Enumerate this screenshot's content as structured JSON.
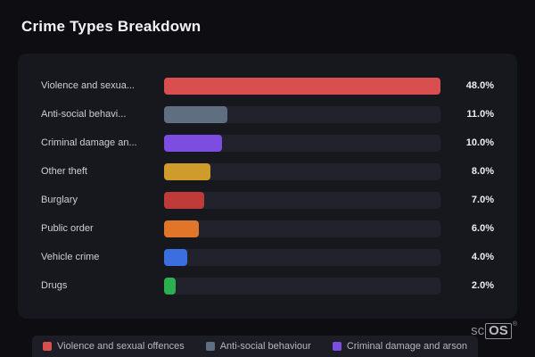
{
  "page": {
    "title": "Crime Types Breakdown"
  },
  "chart_data": {
    "type": "bar",
    "orientation": "horizontal",
    "title": "Crime Types Breakdown",
    "categories": [
      "Violence and sexua...",
      "Anti-social behavi...",
      "Criminal damage an...",
      "Other theft",
      "Burglary",
      "Public order",
      "Vehicle crime",
      "Drugs"
    ],
    "values": [
      48.0,
      11.0,
      10.0,
      8.0,
      7.0,
      6.0,
      4.0,
      2.0
    ],
    "value_labels": [
      "48.0%",
      "11.0%",
      "10.0%",
      "8.0%",
      "7.0%",
      "6.0%",
      "4.0%",
      "2.0%"
    ],
    "colors": [
      "#d94f4f",
      "#5f6f81",
      "#7d4ce0",
      "#cf9b2a",
      "#c13a3a",
      "#e1762a",
      "#3b6fe0",
      "#2ab04f"
    ],
    "xlim": [
      0,
      48
    ],
    "grid": false,
    "legend_position": "bottom"
  },
  "rows": [
    {
      "label": "Violence and sexua...",
      "value_label": "48.0%",
      "color": "#d94f4f"
    },
    {
      "label": "Anti-social behavi...",
      "value_label": "11.0%",
      "color": "#5f6f81"
    },
    {
      "label": "Criminal damage an...",
      "value_label": "10.0%",
      "color": "#7d4ce0"
    },
    {
      "label": "Other theft",
      "value_label": "8.0%",
      "color": "#cf9b2a"
    },
    {
      "label": "Burglary",
      "value_label": "7.0%",
      "color": "#c13a3a"
    },
    {
      "label": "Public order",
      "value_label": "6.0%",
      "color": "#e1762a"
    },
    {
      "label": "Vehicle crime",
      "value_label": "4.0%",
      "color": "#3b6fe0"
    },
    {
      "label": "Drugs",
      "value_label": "2.0%",
      "color": "#2ab04f"
    }
  ],
  "legend": {
    "items": [
      {
        "label": "Violence and sexual offences",
        "color": "#d94f4f"
      },
      {
        "label": "Anti-social behaviour",
        "color": "#5f6f81"
      },
      {
        "label": "Criminal damage and arson",
        "color": "#7d4ce0"
      }
    ]
  },
  "watermark": {
    "prefix": "sc",
    "boxed": "OS",
    "registered": "®"
  }
}
